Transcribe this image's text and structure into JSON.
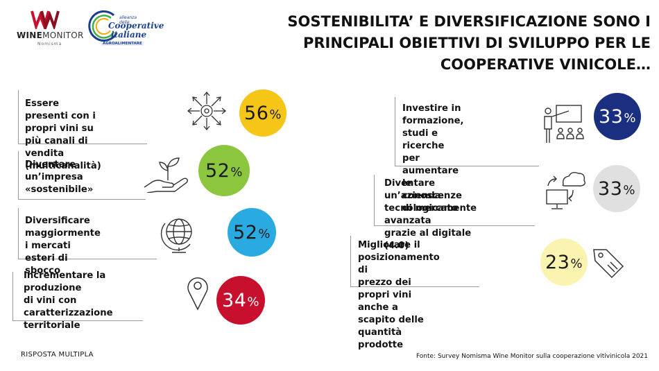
{
  "logos": {
    "wine_monitor": {
      "name_bold": "WINE",
      "name_rest": "MONITOR",
      "sub": "Nomisma"
    },
    "cooperative": {
      "line1": "alleanza delle",
      "line2": "Cooperative",
      "line3": "italiane",
      "line4": "AGROALIMENTARE"
    }
  },
  "title": {
    "line1": "SOSTENIBILITA’ E DIVERSIFICAZIONE SONO I",
    "line2": "PRINCIPALI OBIETTIVI DI SVILUPPO PER LE",
    "line3": "COOPERATIVE VINICOLE…"
  },
  "chart_data": {
    "type": "table",
    "unit": "%",
    "items": [
      {
        "label": "Essere presenti con i propri vini su più canali di vendita (multicanalità)",
        "value": 56,
        "color": "#f5c518",
        "text_color": "#1a1a1a",
        "icon": "multichannel-arrows-icon"
      },
      {
        "label": "Diventare un’impresa «sostenibile»",
        "value": 52,
        "color": "#8cc63f",
        "text_color": "#1a1a1a",
        "icon": "hand-plant-icon"
      },
      {
        "label": "Diversificare maggiormente i mercati esteri di sbocco",
        "value": 52,
        "color": "#29abe2",
        "text_color": "#1a1a1a",
        "icon": "globe-icon"
      },
      {
        "label": "Incrementare la produzione di vini con caratterizzazione territoriale",
        "value": 34,
        "color": "#c8102e",
        "text_color": "#ffffff",
        "icon": "map-pin-icon"
      },
      {
        "label": "Investire in formazione, studi e ricerche per aumentare le conoscenze di mercato",
        "value": 33,
        "color": "#1a2f80",
        "text_color": "#ffffff",
        "icon": "teacher-board-icon"
      },
      {
        "label": "Diventare un’azienda tecnologicamente avanzata grazie al digitale (4.0)",
        "value": 33,
        "color": "#e0e0e0",
        "text_color": "#1a1a1a",
        "icon": "cloud-computer-icon"
      },
      {
        "label": "Migliorare il posizionamento di prezzo dei propri vini anche a scapito delle quantità prodotte",
        "value": 23,
        "color": "#fbf3b0",
        "text_color": "#1a1a1a",
        "icon": "price-tag-icon"
      }
    ]
  },
  "labels": {
    "item0": [
      "Essere presenti con i",
      "propri vini su più canali di",
      "vendita (multicanalità)"
    ],
    "item1": [
      "Diventare un’impresa",
      "«sostenibile»"
    ],
    "item2": [
      "Diversificare",
      "maggiormente i mercati",
      "esteri di sbocco"
    ],
    "item3": [
      "Incrementare la produzione",
      "di vini con caratterizzazione",
      "territoriale"
    ],
    "item4": [
      "Investire in formazione,",
      "studi e ricerche per",
      "aumentare le",
      "conoscenze di mercato"
    ],
    "item5": [
      "Diventare un’azienda",
      "tecnologicamente avanzata",
      "grazie al digitale (4.0)"
    ],
    "item6": [
      "Migliorare il posizionamento di",
      "prezzo dei propri vini anche a",
      "scapito delle quantità prodotte"
    ]
  },
  "footer": {
    "note": "RISPOSTA MULTIPLA",
    "source": "Fonte: Survey Nomisma Wine Monitor sulla cooperazione vitivinicola 2021"
  }
}
